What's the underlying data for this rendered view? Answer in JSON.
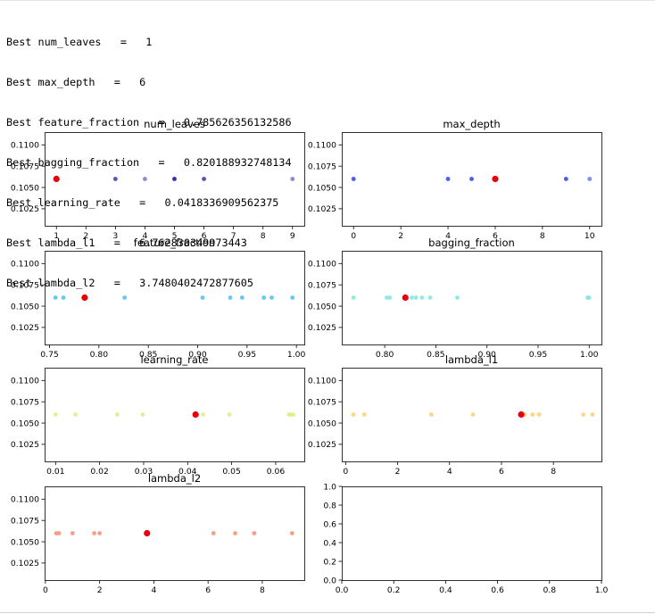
{
  "output": {
    "lines": [
      "Best num_leaves   =   1",
      "Best max_depth   =   6",
      "Best feature_fraction   =   0.785626356132586",
      "Best bagging_fraction   =   0.820188932748134",
      "Best learning_rate   =   0.0418336909562375",
      "Best lambda_l1   =   6.762830349973443",
      "Best lambda_l2   =   3.7480402472877605"
    ]
  },
  "chart_data": [
    {
      "type": "scatter",
      "title": "num_leaves",
      "color": "#1a1a9c",
      "xlim": [
        0.6,
        9.4
      ],
      "ylim": [
        0.1005,
        0.1115
      ],
      "xticks": [
        1,
        2,
        3,
        4,
        5,
        6,
        7,
        8,
        9
      ],
      "xtick_labels": [
        "1",
        "2",
        "3",
        "4",
        "5",
        "6",
        "7",
        "8",
        "9"
      ],
      "yticks": [
        0.1025,
        0.105,
        0.1075,
        0.11
      ],
      "ytick_labels": [
        "0.1025",
        "0.1050",
        "0.1075",
        "0.1100"
      ],
      "x": [
        3,
        4,
        5,
        6,
        9
      ],
      "y": [
        0.106,
        0.106,
        0.106,
        0.106,
        0.106
      ],
      "alphas": [
        0.75,
        0.5,
        0.9,
        0.75,
        0.5
      ],
      "best": {
        "x": 1,
        "y": 0.106
      }
    },
    {
      "type": "scatter",
      "title": "max_depth",
      "color": "#2b3df0",
      "xlim": [
        -0.5,
        10.5
      ],
      "ylim": [
        0.1005,
        0.1115
      ],
      "xticks": [
        0,
        2,
        4,
        6,
        8,
        10
      ],
      "xtick_labels": [
        "0",
        "2",
        "4",
        "6",
        "8",
        "10"
      ],
      "yticks": [
        0.1025,
        0.105,
        0.1075,
        0.11
      ],
      "ytick_labels": [
        "0.1025",
        "0.1050",
        "0.1075",
        "0.1100"
      ],
      "x": [
        0,
        4,
        5,
        9,
        10
      ],
      "y": [
        0.106,
        0.106,
        0.106,
        0.106,
        0.106
      ],
      "alphas": [
        0.85,
        0.85,
        0.85,
        0.85,
        0.6
      ],
      "best": {
        "x": 6,
        "y": 0.106
      }
    },
    {
      "type": "scatter",
      "title": "feature_fraction",
      "color": "#4fc6f5",
      "xlim": [
        0.745,
        1.008
      ],
      "ylim": [
        0.1005,
        0.1115
      ],
      "xticks": [
        0.75,
        0.8,
        0.85,
        0.9,
        0.95,
        1.0
      ],
      "xtick_labels": [
        "0.75",
        "0.80",
        "0.85",
        "0.90",
        "0.95",
        "1.00"
      ],
      "yticks": [
        0.1025,
        0.105,
        0.1075,
        0.11
      ],
      "ytick_labels": [
        "0.1025",
        "0.1050",
        "0.1075",
        "0.1100"
      ],
      "x": [
        0.756,
        0.764,
        0.826,
        0.905,
        0.933,
        0.945,
        0.967,
        0.975,
        0.996
      ],
      "y": [
        0.106,
        0.106,
        0.106,
        0.106,
        0.106,
        0.106,
        0.106,
        0.106,
        0.106
      ],
      "alphas": [
        0.9,
        0.9,
        0.9,
        0.9,
        0.9,
        0.9,
        0.9,
        0.9,
        0.9
      ],
      "best": {
        "x": 0.7856,
        "y": 0.106
      }
    },
    {
      "type": "scatter",
      "title": "bagging_fraction",
      "color": "#86e8e0",
      "xlim": [
        0.758,
        1.012
      ],
      "ylim": [
        0.1005,
        0.1115
      ],
      "xticks": [
        0.8,
        0.85,
        0.9,
        0.95,
        1.0
      ],
      "xtick_labels": [
        "0.80",
        "0.85",
        "0.90",
        "0.95",
        "1.00"
      ],
      "yticks": [
        0.1025,
        0.105,
        0.1075,
        0.11
      ],
      "ytick_labels": [
        "0.1025",
        "0.1050",
        "0.1075",
        "0.1100"
      ],
      "x": [
        0.7695,
        0.802,
        0.805,
        0.8265,
        0.8305,
        0.8365,
        0.8445,
        0.871,
        0.9985,
        1.0
      ],
      "y": [
        0.106,
        0.106,
        0.106,
        0.106,
        0.106,
        0.106,
        0.106,
        0.106,
        0.106,
        0.106
      ],
      "alphas": [
        0.9,
        0.9,
        0.9,
        0.9,
        0.9,
        0.9,
        0.9,
        0.9,
        0.9,
        0.9
      ],
      "best": {
        "x": 0.8202,
        "y": 0.106
      }
    },
    {
      "type": "scatter",
      "title": "learning_rate",
      "color": "#d8f28a",
      "xlim": [
        0.0075,
        0.0665
      ],
      "ylim": [
        0.1005,
        0.1115
      ],
      "xticks": [
        0.01,
        0.02,
        0.03,
        0.04,
        0.05,
        0.06
      ],
      "xtick_labels": [
        "0.01",
        "0.02",
        "0.03",
        "0.04",
        "0.05",
        "0.06"
      ],
      "yticks": [
        0.1025,
        0.105,
        0.1075,
        0.11
      ],
      "ytick_labels": [
        "0.1025",
        "0.1050",
        "0.1075",
        "0.1100"
      ],
      "x": [
        0.01,
        0.0145,
        0.024,
        0.0298,
        0.0435,
        0.0495,
        0.063,
        0.0635,
        0.064
      ],
      "y": [
        0.106,
        0.106,
        0.106,
        0.106,
        0.106,
        0.106,
        0.106,
        0.106,
        0.106
      ],
      "alphas": [
        0.9,
        0.9,
        0.9,
        0.9,
        0.9,
        0.9,
        0.9,
        0.9,
        0.9
      ],
      "best": {
        "x": 0.0418,
        "y": 0.106
      }
    },
    {
      "type": "scatter",
      "title": "lambda_l1",
      "color": "#fdd27a",
      "xlim": [
        -0.15,
        9.85
      ],
      "ylim": [
        0.1005,
        0.1115
      ],
      "xticks": [
        0,
        2,
        4,
        6,
        8
      ],
      "xtick_labels": [
        "0",
        "2",
        "4",
        "6",
        "8"
      ],
      "yticks": [
        0.1025,
        0.105,
        0.1075,
        0.11
      ],
      "ytick_labels": [
        "0.1025",
        "0.1050",
        "0.1075",
        "0.1100"
      ],
      "x": [
        0.3,
        0.72,
        3.3,
        4.9,
        6.9,
        7.2,
        7.45,
        9.15,
        9.5
      ],
      "y": [
        0.106,
        0.106,
        0.106,
        0.106,
        0.106,
        0.106,
        0.106,
        0.106,
        0.106
      ],
      "alphas": [
        0.9,
        0.9,
        0.9,
        0.9,
        0.9,
        0.9,
        0.9,
        0.9,
        0.9
      ],
      "best": {
        "x": 6.76,
        "y": 0.106
      }
    },
    {
      "type": "scatter",
      "title": "lambda_l2",
      "color": "#f5977a",
      "xlim": [
        -0.03,
        9.55
      ],
      "ylim": [
        0.1005,
        0.1115
      ],
      "xticks": [
        0,
        2,
        4,
        6,
        8
      ],
      "xtick_labels": [
        "0",
        "2",
        "4",
        "6",
        "8"
      ],
      "yticks": [
        0.1025,
        0.105,
        0.1075,
        0.11
      ],
      "ytick_labels": [
        "0.1025",
        "0.1050",
        "0.1075",
        "0.1100"
      ],
      "x": [
        0.4,
        0.5,
        1.0,
        1.8,
        2.0,
        6.2,
        7.0,
        7.7,
        9.1
      ],
      "y": [
        0.106,
        0.106,
        0.106,
        0.106,
        0.106,
        0.106,
        0.106,
        0.106,
        0.106
      ],
      "alphas": [
        0.9,
        0.9,
        0.9,
        0.9,
        0.9,
        0.9,
        0.9,
        0.9,
        0.9
      ],
      "best": {
        "x": 3.748,
        "y": 0.106
      }
    },
    {
      "type": "scatter",
      "title": "",
      "color": "#000000",
      "xlim": [
        0.0,
        1.0
      ],
      "ylim": [
        0.0,
        1.0
      ],
      "xticks": [
        0,
        0.2,
        0.4,
        0.6,
        0.8,
        1.0
      ],
      "xtick_labels": [
        "0.0",
        "0.2",
        "0.4",
        "0.6",
        "0.8",
        "1.0"
      ],
      "yticks": [
        0,
        0.2,
        0.4,
        0.6,
        0.8,
        1.0
      ],
      "ytick_labels": [
        "0.0",
        "0.2",
        "0.4",
        "0.6",
        "0.8",
        "1.0"
      ],
      "x": [],
      "y": [],
      "alphas": [],
      "best": null
    }
  ],
  "style": {
    "best_color": "#e8000b",
    "axis_color": "#000000"
  }
}
